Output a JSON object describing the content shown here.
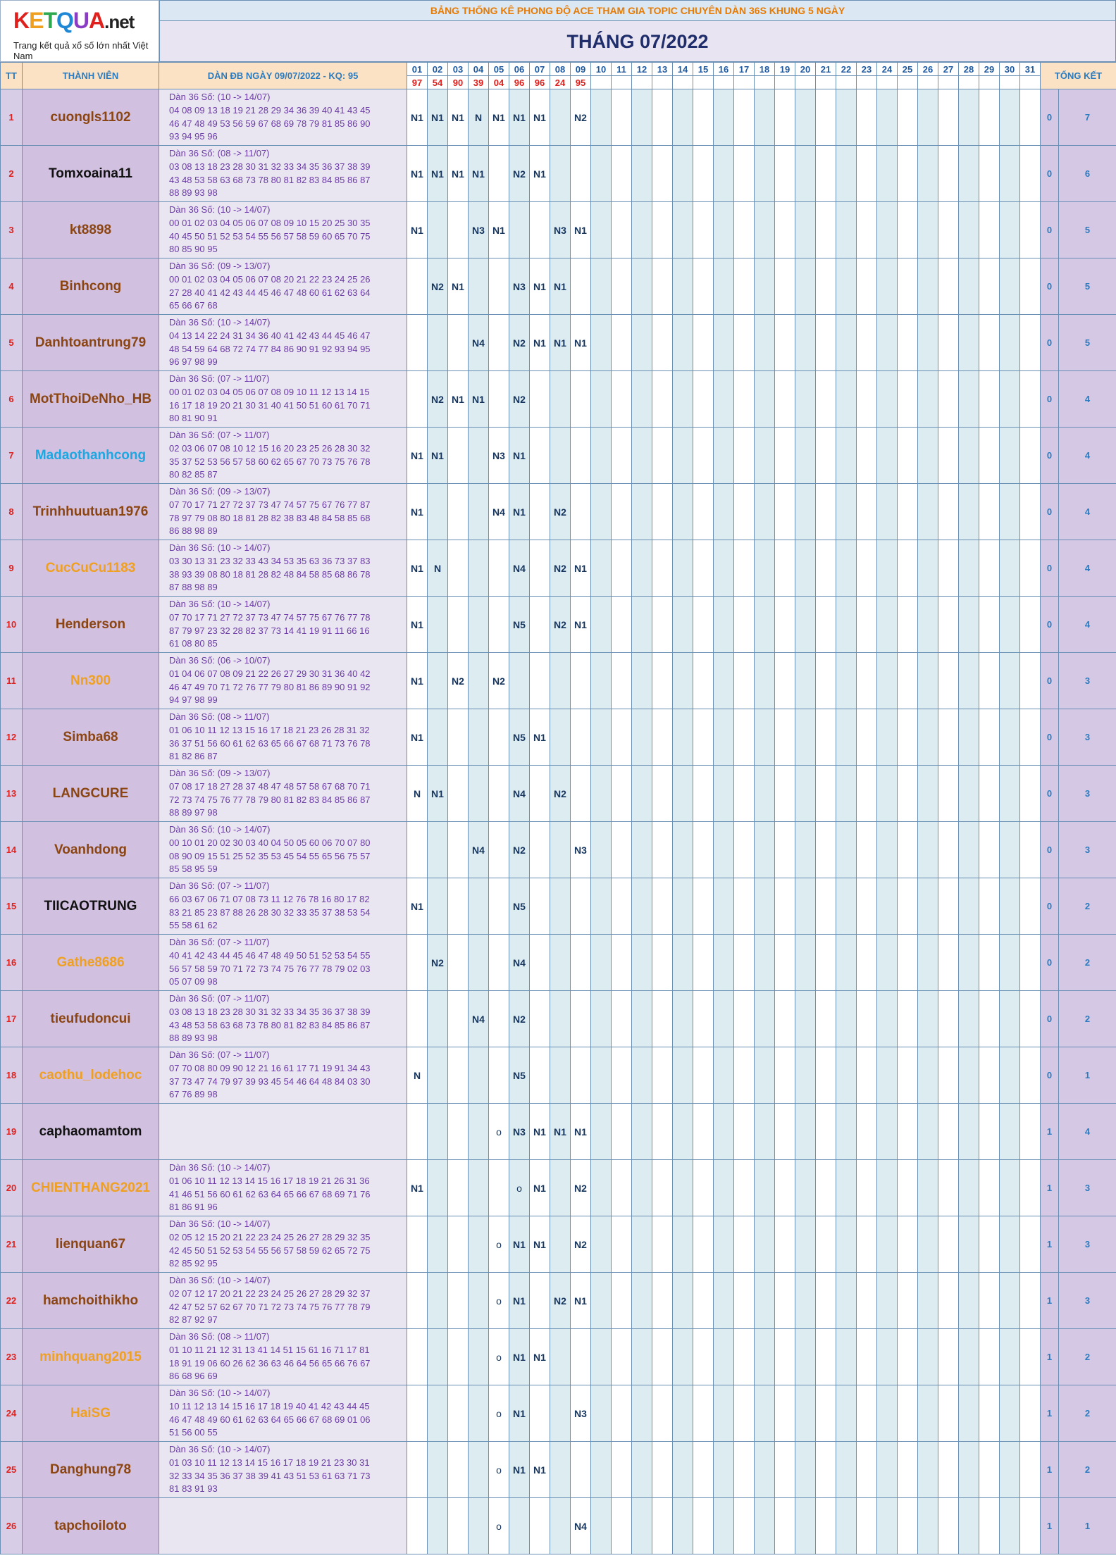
{
  "logo": {
    "text": "KETQUA",
    "suffix": ".net",
    "tagline": "Trang kết quả xổ số lớn nhất Việt Nam"
  },
  "banner": "BẢNG THỐNG KÊ PHONG ĐỘ ACE THAM GIA TOPIC CHUYÊN DÀN 36S KHUNG 5 NGÀY",
  "month_title": "THÁNG 07/2022",
  "headers": {
    "tt": "TT",
    "member": "THÀNH VIÊN",
    "dan": "DÀN ĐB NGÀY 09/07/2022 - KQ: 95",
    "summary": "TỔNG KẾT"
  },
  "days": [
    "01",
    "02",
    "03",
    "04",
    "05",
    "06",
    "07",
    "08",
    "09",
    "10",
    "11",
    "12",
    "13",
    "14",
    "15",
    "16",
    "17",
    "18",
    "19",
    "20",
    "21",
    "22",
    "23",
    "24",
    "25",
    "26",
    "27",
    "28",
    "29",
    "30",
    "31"
  ],
  "results": [
    "97",
    "54",
    "90",
    "39",
    "04",
    "96",
    "96",
    "24",
    "95",
    "",
    "",
    "",
    "",
    "",
    "",
    "",
    "",
    "",
    "",
    "",
    "",
    "",
    "",
    "",
    "",
    "",
    "",
    "",
    "",
    "",
    ""
  ],
  "colors": {
    "brown": "#8b4513",
    "black": "#111111",
    "blue": "#1ea7e0",
    "orange": "#f0a020"
  },
  "rows": [
    {
      "tt": "1",
      "name": "cuongls1102",
      "color": "brown",
      "dan": [
        "Dàn 36 Số: (10 -> 14/07)",
        "04 08 09 13 18 19 21 28 29 34 36 39 40 41 43 45",
        "46 47 48 49 53 56 59 67 68 69 78 79 81 85 86 90",
        "93 94 95 96"
      ],
      "marks": [
        "N1",
        "N1",
        "N1",
        "N",
        "N1",
        "N1",
        "N1",
        "",
        "N2"
      ],
      "s1": "0",
      "s2": "7"
    },
    {
      "tt": "2",
      "name": "Tomxoaina11",
      "color": "black",
      "dan": [
        "Dàn 36 Số: (08 -> 11/07)",
        "03 08 13 18 23 28 30 31 32 33 34 35 36 37 38 39",
        "43 48 53 58 63 68 73 78 80 81 82 83 84 85 86 87",
        "88 89 93 98"
      ],
      "marks": [
        "N1",
        "N1",
        "N1",
        "N1",
        "",
        "N2",
        "N1",
        "",
        ""
      ],
      "s1": "0",
      "s2": "6"
    },
    {
      "tt": "3",
      "name": "kt8898",
      "color": "brown",
      "dan": [
        "Dàn 36 Số: (10 -> 14/07)",
        "00 01 02 03 04 05 06 07 08 09 10 15 20 25 30 35",
        "40 45 50 51 52 53 54 55 56 57 58 59 60 65 70 75",
        "80 85 90 95"
      ],
      "marks": [
        "N1",
        "",
        "",
        "N3",
        "N1",
        "",
        "",
        "N3",
        "N1"
      ],
      "s1": "0",
      "s2": "5"
    },
    {
      "tt": "4",
      "name": "Binhcong",
      "color": "brown",
      "dan": [
        "Dàn 36 Số: (09 -> 13/07)",
        "00 01 02 03 04 05 06 07 08 20 21 22 23 24 25 26",
        "27 28 40 41 42 43 44 45 46 47 48 60 61 62 63 64",
        "65 66 67 68"
      ],
      "marks": [
        "",
        "N2",
        "N1",
        "",
        "",
        "N3",
        "N1",
        "N1",
        ""
      ],
      "s1": "0",
      "s2": "5"
    },
    {
      "tt": "5",
      "name": "Danhtoantrung79",
      "color": "brown",
      "dan": [
        "Dàn 36 Số: (10 -> 14/07)",
        "04 13 14 22 24 31 34 36 40 41 42 43 44 45 46 47",
        "48 54 59 64 68 72 74 77 84 86 90 91 92 93 94 95",
        "96 97 98 99"
      ],
      "marks": [
        "",
        "",
        "",
        "N4",
        "",
        "N2",
        "N1",
        "N1",
        "N1"
      ],
      "s1": "0",
      "s2": "5"
    },
    {
      "tt": "6",
      "name": "MotThoiDeNho_HB",
      "color": "brown",
      "dan": [
        "Dàn 36 Số: (07 -> 11/07)",
        "00 01 02 03 04 05 06 07 08 09 10 11 12 13 14 15",
        "16 17 18 19 20 21 30 31 40 41 50 51 60 61 70 71",
        "80 81 90 91"
      ],
      "marks": [
        "",
        "N2",
        "N1",
        "N1",
        "",
        "N2",
        "",
        "",
        ""
      ],
      "s1": "0",
      "s2": "4"
    },
    {
      "tt": "7",
      "name": "Madaothanhcong",
      "color": "blue",
      "dan": [
        "Dàn 36 Số: (07 -> 11/07)",
        "02 03 06 07 08 10 12 15 16 20 23 25 26 28 30 32",
        "35 37 52 53 56 57 58 60 62 65 67 70 73 75 76 78",
        "80 82 85 87"
      ],
      "marks": [
        "N1",
        "N1",
        "",
        "",
        "N3",
        "N1",
        "",
        "",
        ""
      ],
      "s1": "0",
      "s2": "4"
    },
    {
      "tt": "8",
      "name": "Trinhhuutuan1976",
      "color": "brown",
      "dan": [
        "Dàn 36 Số: (09 -> 13/07)",
        "07 70 17 71 27 72 37 73 47 74 57 75 67 76 77 87",
        "78 97 79 08 80 18 81 28 82 38 83 48 84 58 85 68",
        "86 88 98 89"
      ],
      "marks": [
        "N1",
        "",
        "",
        "",
        "N4",
        "N1",
        "",
        "N2",
        ""
      ],
      "s1": "0",
      "s2": "4"
    },
    {
      "tt": "9",
      "name": "CucCuCu1183",
      "color": "orange",
      "dan": [
        "Dàn 36 Số: (10 -> 14/07)",
        "03 30 13 31 23 32 33 43 34 53 35 63 36 73 37 83",
        "38 93 39 08 80 18 81 28 82 48 84 58 85 68 86 78",
        "87 88 98 89"
      ],
      "marks": [
        "N1",
        "N",
        "",
        "",
        "",
        "N4",
        "",
        "N2",
        "N1"
      ],
      "s1": "0",
      "s2": "4"
    },
    {
      "tt": "10",
      "name": "Henderson",
      "color": "brown",
      "dan": [
        "Dàn 36 Số: (10 -> 14/07)",
        "07 70 17 71 27 72 37 73 47 74 57 75 67 76 77 78",
        "87 79 97 23 32 28 82 37 73 14 41 19 91 11 66 16",
        "61 08 80 85"
      ],
      "marks": [
        "N1",
        "",
        "",
        "",
        "",
        "N5",
        "",
        "N2",
        "N1"
      ],
      "s1": "0",
      "s2": "4"
    },
    {
      "tt": "11",
      "name": "Nn300",
      "color": "orange",
      "dan": [
        "Dàn 36 Số: (06 -> 10/07)",
        "01 04 06 07 08 09 21 22 26 27 29 30 31 36 40 42",
        "46 47 49 70 71 72 76 77 79 80 81 86 89 90 91 92",
        "94 97 98 99"
      ],
      "marks": [
        "N1",
        "",
        "N2",
        "",
        "N2",
        "",
        "",
        "",
        ""
      ],
      "s1": "0",
      "s2": "3"
    },
    {
      "tt": "12",
      "name": "Simba68",
      "color": "brown",
      "dan": [
        "Dàn 36 Số: (08 -> 11/07)",
        "01 06 10 11 12 13 15 16 17 18 21 23 26 28 31 32",
        "36 37 51 56 60 61 62 63 65 66 67 68 71 73 76 78",
        "81 82 86 87"
      ],
      "marks": [
        "N1",
        "",
        "",
        "",
        "",
        "N5",
        "N1",
        "",
        ""
      ],
      "s1": "0",
      "s2": "3"
    },
    {
      "tt": "13",
      "name": "LANGCURE",
      "color": "brown",
      "dan": [
        "Dàn 36 Số: (09 -> 13/07)",
        "07 08 17 18 27 28 37 48 47 48 57 58 67 68 70 71",
        "72 73 74 75 76 77 78 79 80 81 82 83 84 85 86 87",
        "88 89 97 98"
      ],
      "marks": [
        "N",
        "N1",
        "",
        "",
        "",
        "N4",
        "",
        "N2",
        ""
      ],
      "s1": "0",
      "s2": "3"
    },
    {
      "tt": "14",
      "name": "Voanhdong",
      "color": "brown",
      "dan": [
        "Dàn 36 Số: (10 -> 14/07)",
        "00 10 01 20 02 30 03 40 04 50 05 60 06 70 07 80",
        "08 90 09 15 51 25 52 35 53 45 54 55 65 56 75 57",
        "85 58 95 59"
      ],
      "marks": [
        "",
        "",
        "",
        "N4",
        "",
        "N2",
        "",
        "",
        "N3"
      ],
      "s1": "0",
      "s2": "3"
    },
    {
      "tt": "15",
      "name": "TIICAOTRUNG",
      "color": "black",
      "dan": [
        "Dàn 36 Số: (07 -> 11/07)",
        "66 03 67 06 71 07 08 73 11 12 76 78 16 80 17 82",
        "83 21 85 23 87 88 26 28 30 32 33 35 37 38 53 54",
        "55 58 61 62"
      ],
      "marks": [
        "N1",
        "",
        "",
        "",
        "",
        "N5",
        "",
        "",
        ""
      ],
      "s1": "0",
      "s2": "2"
    },
    {
      "tt": "16",
      "name": "Gathe8686",
      "color": "orange",
      "dan": [
        "Dàn 36 Số: (07 -> 11/07)",
        "40 41 42 43 44 45 46 47 48 49 50 51 52 53 54 55",
        "56 57 58 59 70 71 72 73 74 75 76 77 78 79 02 03",
        "05 07 09 98"
      ],
      "marks": [
        "",
        "N2",
        "",
        "",
        "",
        "N4",
        "",
        "",
        ""
      ],
      "s1": "0",
      "s2": "2"
    },
    {
      "tt": "17",
      "name": "tieufudoncui",
      "color": "brown",
      "dan": [
        "Dàn 36 Số: (07 -> 11/07)",
        "03 08 13 18 23 28 30 31 32 33 34 35 36 37 38 39",
        "43 48 53 58 63 68 73 78 80 81 82 83 84 85 86 87",
        "88 89 93 98"
      ],
      "marks": [
        "",
        "",
        "",
        "N4",
        "",
        "N2",
        "",
        "",
        ""
      ],
      "s1": "0",
      "s2": "2"
    },
    {
      "tt": "18",
      "name": "caothu_lodehoc",
      "color": "orange",
      "dan": [
        "Dàn 36 Số: (07 -> 11/07)",
        "07 70 08 80 09 90 12 21 16 61 17 71 19 91 34 43",
        "37 73 47 74 79 97 39 93 45 54 46 64 48 84 03 30",
        "67 76 89 98"
      ],
      "marks": [
        "N",
        "",
        "",
        "",
        "",
        "N5",
        "",
        "",
        ""
      ],
      "s1": "0",
      "s2": "1"
    },
    {
      "tt": "19",
      "name": "caphaomamtom",
      "color": "black",
      "dan": [],
      "marks": [
        "",
        "",
        "",
        "",
        "o",
        "N3",
        "N1",
        "N1",
        "N1"
      ],
      "s1": "1",
      "s2": "4"
    },
    {
      "tt": "20",
      "name": "CHIENTHANG2021",
      "color": "orange",
      "dan": [
        "Dàn 36 Số: (10 -> 14/07)",
        "01 06 10 11 12 13 14 15 16 17 18 19 21 26 31 36",
        "41 46 51 56 60 61 62 63 64 65 66 67 68 69 71 76",
        "81 86 91 96"
      ],
      "marks": [
        "N1",
        "",
        "",
        "",
        "",
        "o",
        "N1",
        "",
        "N2"
      ],
      "s1": "1",
      "s2": "3"
    },
    {
      "tt": "21",
      "name": "lienquan67",
      "color": "brown",
      "dan": [
        "Dàn 36 Số: (10 -> 14/07)",
        "02 05 12 15 20 21 22 23 24 25 26 27 28 29 32 35",
        "42 45 50 51 52 53 54 55 56 57 58 59 62 65 72 75",
        "82 85 92 95"
      ],
      "marks": [
        "",
        "",
        "",
        "",
        "o",
        "N1",
        "N1",
        "",
        "N2"
      ],
      "s1": "1",
      "s2": "3"
    },
    {
      "tt": "22",
      "name": "hamchoithikho",
      "color": "brown",
      "dan": [
        "Dàn 36 Số: (10 -> 14/07)",
        "02 07 12 17 20 21 22 23 24 25 26 27 28 29 32 37",
        "42 47 52 57 62 67 70 71 72 73 74 75 76 77 78 79",
        "82 87 92 97"
      ],
      "marks": [
        "",
        "",
        "",
        "",
        "o",
        "N1",
        "",
        "N2",
        "N1"
      ],
      "s1": "1",
      "s2": "3"
    },
    {
      "tt": "23",
      "name": "minhquang2015",
      "color": "orange",
      "dan": [
        "Dàn 36 Số: (08 -> 11/07)",
        "01 10 11 21 12 31 13 41 14 51 15 61 16 71 17 81",
        "18 91 19 06 60 26 62 36 63 46 64 56 65 66 76 67",
        "86 68 96 69"
      ],
      "marks": [
        "",
        "",
        "",
        "",
        "o",
        "N1",
        "N1",
        "",
        ""
      ],
      "s1": "1",
      "s2": "2"
    },
    {
      "tt": "24",
      "name": "HaiSG",
      "color": "orange",
      "dan": [
        "Dàn 36 Số: (10 -> 14/07)",
        "10 11 12 13 14 15 16 17 18 19 40 41 42 43 44 45",
        "46 47 48 49 60 61 62 63 64 65 66 67 68 69 01 06",
        "51 56 00 55"
      ],
      "marks": [
        "",
        "",
        "",
        "",
        "o",
        "N1",
        "",
        "",
        "N3"
      ],
      "s1": "1",
      "s2": "2"
    },
    {
      "tt": "25",
      "name": "Danghung78",
      "color": "brown",
      "dan": [
        "Dàn 36 Số: (10 -> 14/07)",
        "01 03 10 11 12 13 14 15 16 17 18 19 21 23 30 31",
        "32 33 34 35 36 37 38 39 41 43 51 53 61 63 71 73",
        "81 83 91 93"
      ],
      "marks": [
        "",
        "",
        "",
        "",
        "o",
        "N1",
        "N1",
        "",
        ""
      ],
      "s1": "1",
      "s2": "2"
    },
    {
      "tt": "26",
      "name": "tapchoiloto",
      "color": "brown",
      "dan": [],
      "marks": [
        "",
        "",
        "",
        "",
        "o",
        "",
        "",
        "",
        "N4"
      ],
      "s1": "1",
      "s2": "1"
    }
  ]
}
